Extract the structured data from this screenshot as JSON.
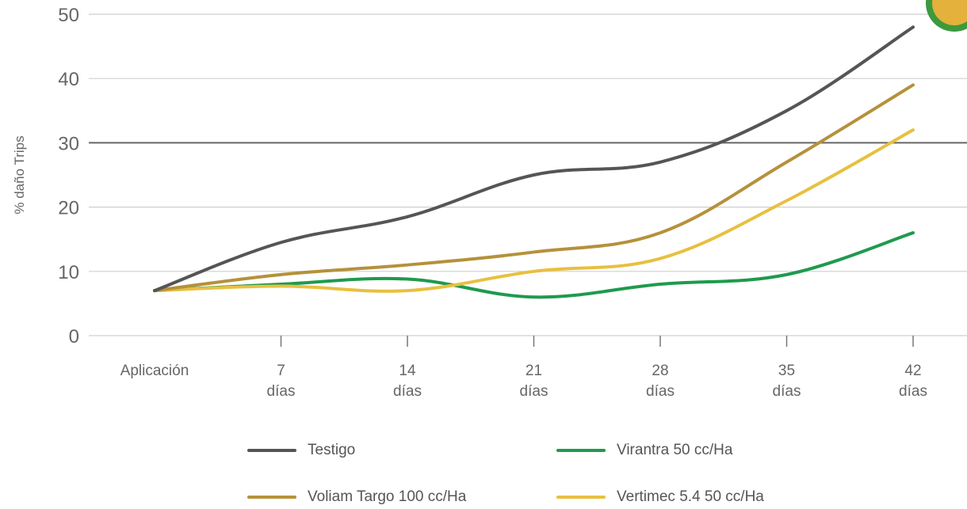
{
  "chart_data": {
    "type": "line",
    "ylabel": "% daño Trips",
    "xlabel": "",
    "ylim": [
      0,
      50
    ],
    "yticks": [
      0,
      10,
      20,
      30,
      40,
      50
    ],
    "categories": [
      {
        "line1": "Aplicación",
        "line2": ""
      },
      {
        "line1": "7",
        "line2": "días"
      },
      {
        "line1": "14",
        "line2": "días"
      },
      {
        "line1": "21",
        "line2": "días"
      },
      {
        "line1": "28",
        "line2": "días"
      },
      {
        "line1": "35",
        "line2": "días"
      },
      {
        "line1": "42",
        "line2": "días"
      }
    ],
    "highlight_y": 30,
    "series": [
      {
        "name": "Testigo",
        "color": "#555555",
        "values": [
          7,
          14.5,
          18.5,
          25,
          27,
          35,
          48
        ]
      },
      {
        "name": "Virantra 50 cc/Ha",
        "color": "#1f9a4e",
        "values": [
          7,
          8,
          8.8,
          6,
          8,
          9.5,
          16
        ]
      },
      {
        "name": "Voliam Targo 100 cc/Ha",
        "color": "#b5913b",
        "values": [
          7,
          9.5,
          11,
          13,
          16,
          27,
          39
        ]
      },
      {
        "name": "Vertimec 5.4 50 cc/Ha",
        "color": "#e8c040",
        "values": [
          7,
          7.7,
          7,
          10,
          12,
          21,
          32
        ]
      }
    ],
    "legend_position": "bottom"
  }
}
